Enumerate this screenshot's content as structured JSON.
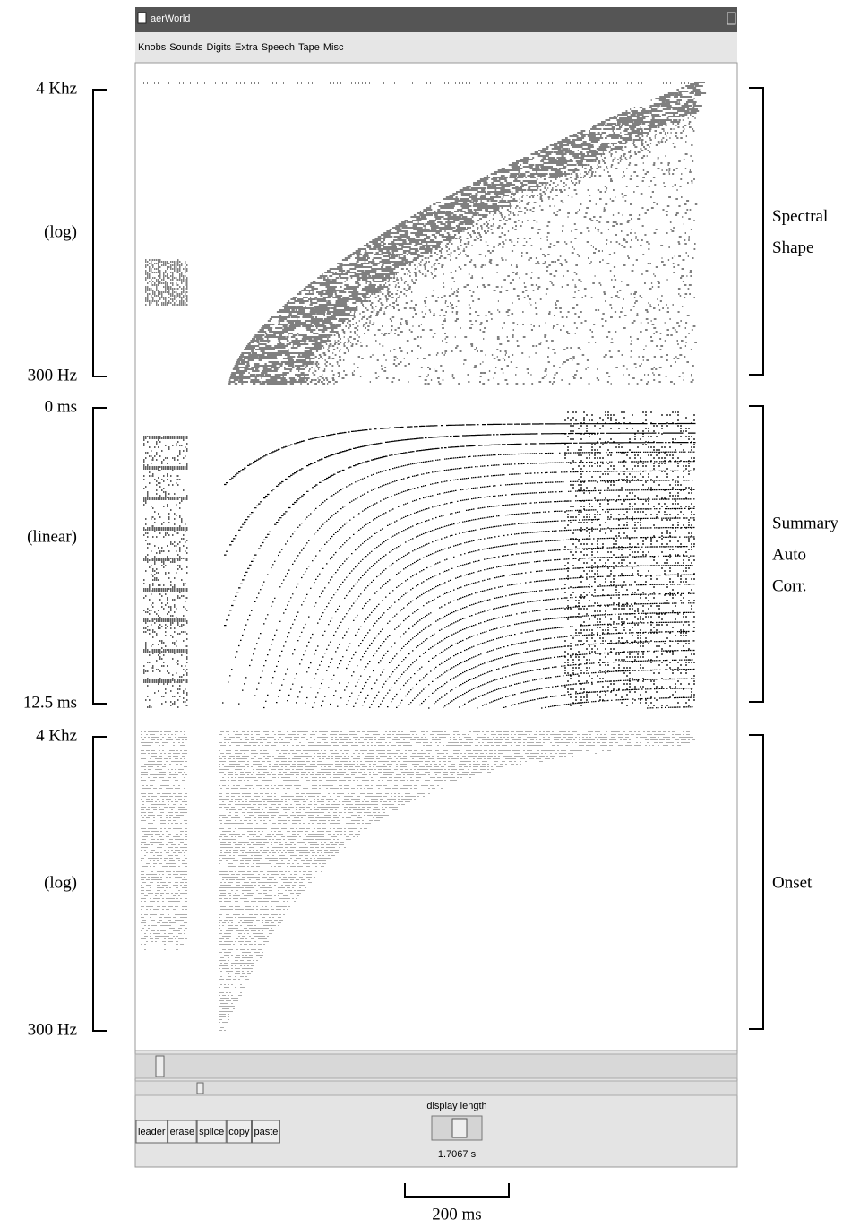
{
  "window": {
    "title": "aerWorld",
    "menu": [
      "Knobs",
      "Sounds",
      "Digits",
      "Extra",
      "Speech",
      "Tape",
      "Misc"
    ]
  },
  "panels": [
    {
      "top_label": "4 Khz",
      "middle_label": "(log)",
      "bottom_label": "300 Hz",
      "name_lines": [
        "Spectral",
        "Shape"
      ]
    },
    {
      "top_label": "0 ms",
      "middle_label": "(linear)",
      "bottom_label": "12.5 ms",
      "name_lines": [
        "Summary",
        "Auto",
        "Corr."
      ]
    },
    {
      "top_label": "4 Khz",
      "middle_label": "(log)",
      "bottom_label": "300 Hz",
      "name_lines": [
        "Onset"
      ]
    }
  ],
  "controls": {
    "buttons": [
      "leader",
      "erase",
      "splice",
      "copy",
      "paste"
    ],
    "slider_label": "display length",
    "slider_value": "1.7067 s"
  },
  "scale_bar": "200 ms"
}
